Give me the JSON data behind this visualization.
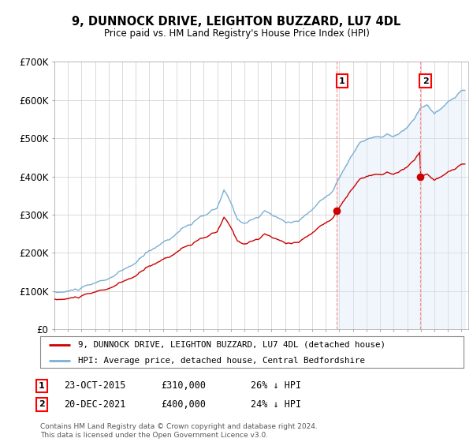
{
  "title": "9, DUNNOCK DRIVE, LEIGHTON BUZZARD, LU7 4DL",
  "subtitle": "Price paid vs. HM Land Registry's House Price Index (HPI)",
  "ylabel_ticks": [
    "£0",
    "£100K",
    "£200K",
    "£300K",
    "£400K",
    "£500K",
    "£600K",
    "£700K"
  ],
  "ylim": [
    0,
    700000
  ],
  "xlim_start": 1995.0,
  "xlim_end": 2025.5,
  "hpi_color": "#7bafd4",
  "hpi_fill_color": "#d6e8f5",
  "price_color": "#cc0000",
  "marker1_date": 2015.82,
  "marker2_date": 2021.97,
  "sale1_y": 310000,
  "sale2_y": 400000,
  "legend_price": "9, DUNNOCK DRIVE, LEIGHTON BUZZARD, LU7 4DL (detached house)",
  "legend_hpi": "HPI: Average price, detached house, Central Bedfordshire",
  "footer": "Contains HM Land Registry data © Crown copyright and database right 2024.\nThis data is licensed under the Open Government Licence v3.0.",
  "background_color": "#ffffff",
  "grid_color": "#cccccc",
  "vline_color": "#ff8888"
}
